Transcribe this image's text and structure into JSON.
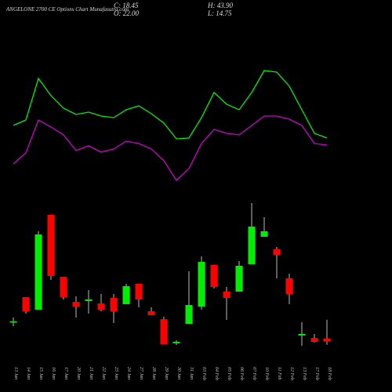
{
  "chart_data": {
    "type": "candlestick",
    "title": "ANGELONE 2700  CE Options  Chart Munafasutra.com",
    "summary": [
      {
        "value": 18.45,
        "label": "C: 18.45"
      },
      {
        "value": 43.9,
        "label": "H: 43.90"
      },
      {
        "value": 22.0,
        "label": "O: 22.00"
      },
      {
        "value": 14.75,
        "label": "L: 14.75"
      }
    ],
    "categories": [
      "13 Jan",
      "14 Jan",
      "15 Jan",
      "16 Jan",
      "17 Jan",
      "20 Jan",
      "21 Jan",
      "22 Jan",
      "23 Jan",
      "24 Jan",
      "27 Jan",
      "28 Jan",
      "29 Jan",
      "30 Jan",
      "31 Jan",
      "03 Feb",
      "04 Feb",
      "05 Feb",
      "06 Feb",
      "07 Feb",
      "10 Feb",
      "11 Feb",
      "12 Feb",
      "13 Feb",
      "17 Feb",
      "18 Feb"
    ],
    "open": [
      41.8,
      70.0,
      55.5,
      165.5,
      93.6,
      64.5,
      65.5,
      62.7,
      69.1,
      61.8,
      85.5,
      53.6,
      44.5,
      16.4,
      39.1,
      59.1,
      107.3,
      76.4,
      76.4,
      108.2,
      140.0,
      125.5,
      91.8,
      25.5,
      22.7,
      22.0
    ],
    "high": [
      46.4,
      70.0,
      146.4,
      165.5,
      93.6,
      70.9,
      78.2,
      73.6,
      73.6,
      85.5,
      85.5,
      58.2,
      47.3,
      20.0,
      100.0,
      117.3,
      107.3,
      81.8,
      111.8,
      179.1,
      162.7,
      128.2,
      97.3,
      40.9,
      27.3,
      43.9
    ],
    "low": [
      36.4,
      50.9,
      55.5,
      90.0,
      67.3,
      46.4,
      50.9,
      53.6,
      40.0,
      61.8,
      58.2,
      49.1,
      15.5,
      14.5,
      39.1,
      55.5,
      80.0,
      43.6,
      76.4,
      108.2,
      140.0,
      91.8,
      61.8,
      13.6,
      17.3,
      14.75
    ],
    "close": [
      41.9,
      53.6,
      142.7,
      94.5,
      70.0,
      59.1,
      67.3,
      55.5,
      53.6,
      82.7,
      67.3,
      49.1,
      15.5,
      18.2,
      60.9,
      110.9,
      81.8,
      69.1,
      106.4,
      151.8,
      146.4,
      119.1,
      73.6,
      27.3,
      18.2,
      18.45
    ],
    "up_color": "#00ee00",
    "down_color": "#ff0000",
    "wick_color": "#bbbbbb",
    "ylim": [
      0,
      187.27
    ],
    "series": [
      {
        "color": "#00ee00",
        "axis": "y2",
        "values": [
          90,
          97,
          150,
          128,
          112,
          104,
          107,
          102,
          100,
          110,
          115,
          105,
          93,
          73,
          74,
          100,
          132,
          117,
          110,
          132,
          160,
          158,
          140,
          110,
          80,
          74
        ]
      },
      {
        "color": "#cc00cc",
        "axis": "y2",
        "values": [
          41,
          55,
          97,
          88,
          78,
          58,
          64,
          56,
          60,
          70,
          67,
          60,
          45,
          20,
          35,
          67,
          85,
          80,
          78,
          90,
          102,
          102,
          98,
          90,
          67,
          65
        ]
      }
    ],
    "y2lim": [
      0,
      190
    ]
  }
}
